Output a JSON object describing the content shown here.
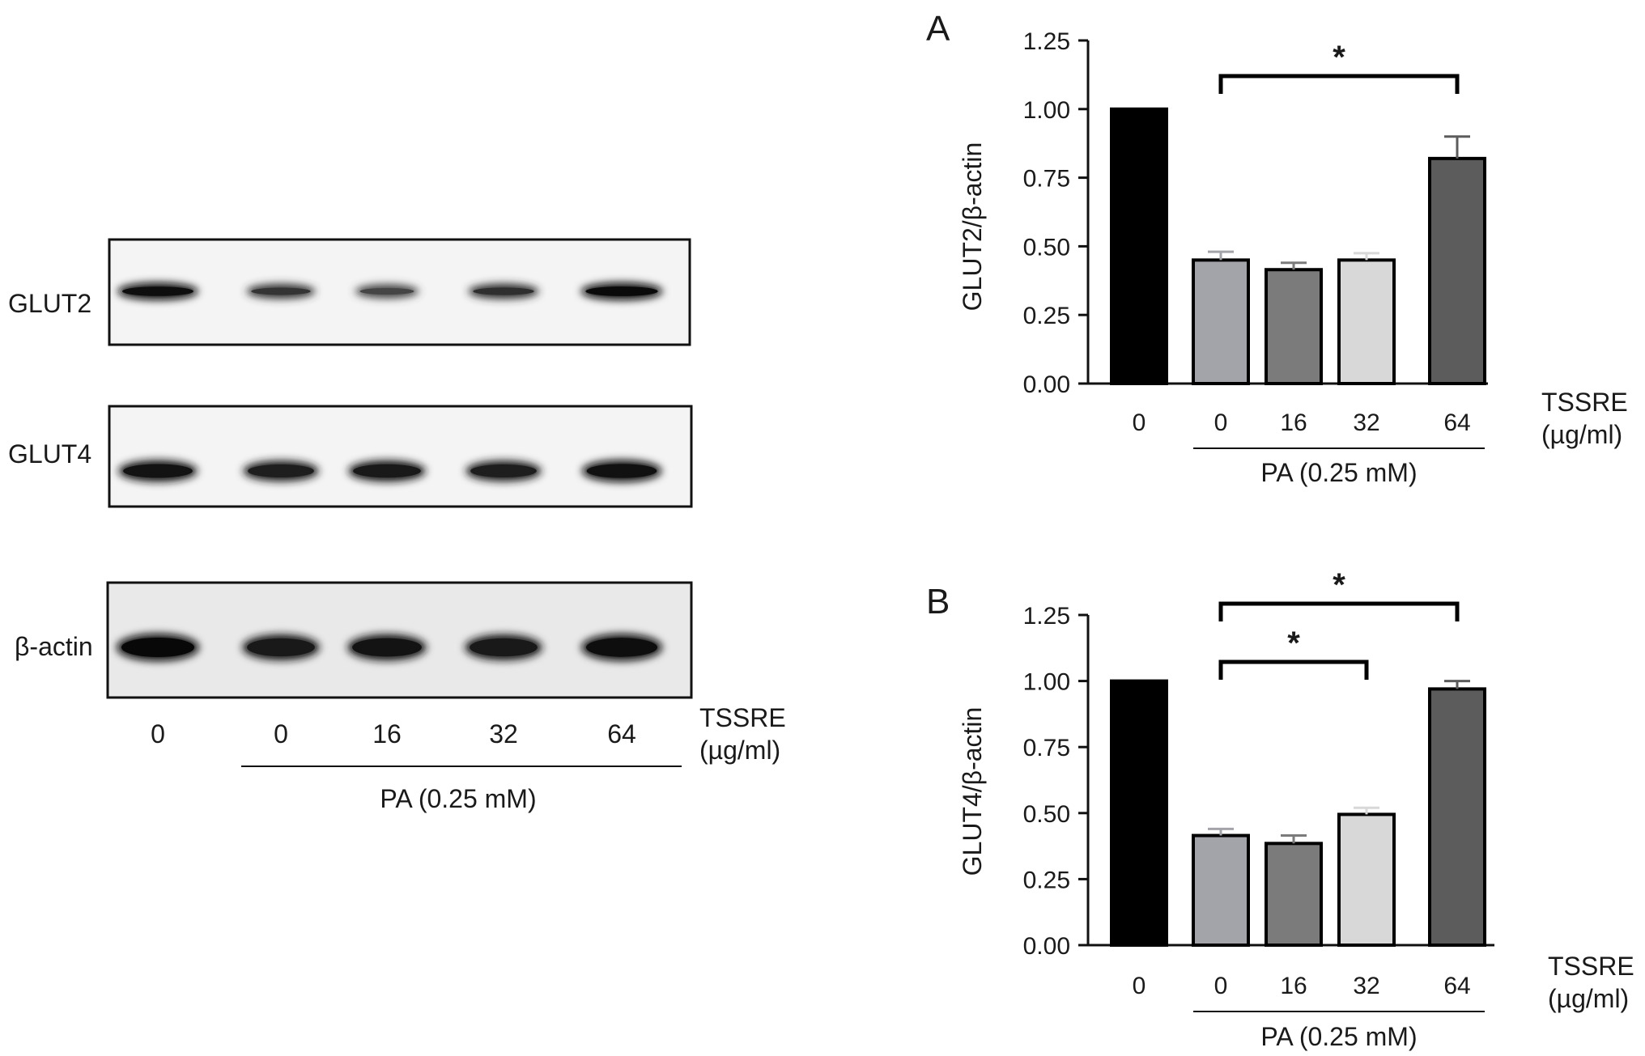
{
  "blot": {
    "rows": [
      {
        "label": "GLUT2",
        "intensities": [
          0.95,
          0.6,
          0.45,
          0.65,
          0.98
        ]
      },
      {
        "label": "GLUT4",
        "intensities": [
          0.9,
          0.8,
          0.85,
          0.8,
          0.92
        ]
      },
      {
        "label": "β-actin",
        "intensities": [
          1.0,
          0.85,
          0.9,
          0.85,
          0.95
        ]
      }
    ],
    "lanes": [
      "0",
      "0",
      "16",
      "32",
      "64"
    ],
    "unit_label_line1": "TSSRE",
    "unit_label_line2": "(µg/ml)",
    "treatment_label": "PA (0.25 mM)"
  },
  "chart_data": [
    {
      "type": "bar",
      "panel": "A",
      "ylabel": "GLUT2/β-actin",
      "categories": [
        "0",
        "0",
        "16",
        "32",
        "64"
      ],
      "values": [
        1.0,
        0.45,
        0.415,
        0.45,
        0.82
      ],
      "errors": [
        0.0,
        0.03,
        0.025,
        0.025,
        0.08
      ],
      "colors": [
        "#000000",
        "#a3a3aa",
        "#7b7b7b",
        "#d8d8d8",
        "#5c5c5c"
      ],
      "ylim": [
        0,
        1.25
      ],
      "yticks": [
        "0.00",
        "0.25",
        "0.50",
        "0.75",
        "1.00",
        "1.25"
      ],
      "xlabel_line1": "TSSRE",
      "xlabel_line2": "(µg/ml)",
      "treatment_label": "PA (0.25 mM)",
      "significance": [
        {
          "from": 1,
          "to": 4,
          "label": "*"
        }
      ]
    },
    {
      "type": "bar",
      "panel": "B",
      "ylabel": "GLUT4/β-actin",
      "categories": [
        "0",
        "0",
        "16",
        "32",
        "64"
      ],
      "values": [
        1.0,
        0.415,
        0.385,
        0.495,
        0.97
      ],
      "errors": [
        0.0,
        0.025,
        0.03,
        0.025,
        0.03
      ],
      "colors": [
        "#000000",
        "#a3a3aa",
        "#7b7b7b",
        "#d8d8d8",
        "#5c5c5c"
      ],
      "ylim": [
        0,
        1.25
      ],
      "yticks": [
        "0.00",
        "0.25",
        "0.50",
        "0.75",
        "1.00",
        "1.25"
      ],
      "xlabel_line1": "TSSRE",
      "xlabel_line2": "(µg/ml)",
      "treatment_label": "PA (0.25 mM)",
      "significance": [
        {
          "from": 1,
          "to": 4,
          "label": "*"
        },
        {
          "from": 1,
          "to": 3,
          "label": "*"
        }
      ]
    }
  ]
}
